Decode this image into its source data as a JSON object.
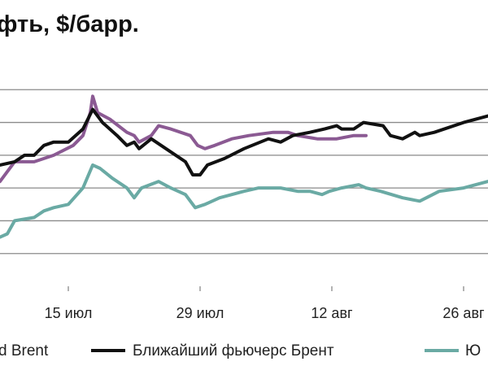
{
  "chart_data": {
    "type": "line",
    "title": "фть, $/барр.",
    "xlabel": "",
    "ylabel": "",
    "x_tick_labels": [
      "15 июл",
      "29 июл",
      "12 авг",
      "26 авг"
    ],
    "legend_position": "bottom",
    "grid": true,
    "series": [
      {
        "name": "d Brent",
        "color": "#8b5a93",
        "values": [
          [
            0,
            82
          ],
          [
            6,
            88
          ],
          [
            14,
            88
          ],
          [
            22,
            90
          ],
          [
            30,
            93
          ],
          [
            34,
            96
          ],
          [
            37,
            103
          ],
          [
            38,
            108
          ],
          [
            40,
            103
          ],
          [
            45,
            101
          ],
          [
            52,
            97
          ],
          [
            55,
            96
          ],
          [
            57,
            94
          ],
          [
            62,
            96
          ],
          [
            65,
            99
          ],
          [
            70,
            98
          ],
          [
            78,
            96
          ],
          [
            81,
            93
          ],
          [
            84,
            92
          ],
          [
            88,
            93
          ],
          [
            95,
            95
          ],
          [
            102,
            96
          ],
          [
            112,
            97
          ],
          [
            118,
            97
          ],
          [
            122,
            96
          ],
          [
            130,
            95
          ],
          [
            138,
            95
          ],
          [
            145,
            96
          ],
          [
            150,
            96
          ]
        ]
      },
      {
        "name": "Ближайший фьючерс Брент",
        "color": "#111111",
        "values": [
          [
            0,
            87
          ],
          [
            6,
            88
          ],
          [
            10,
            90
          ],
          [
            14,
            90
          ],
          [
            18,
            93
          ],
          [
            22,
            94
          ],
          [
            28,
            94
          ],
          [
            34,
            98
          ],
          [
            38,
            104
          ],
          [
            42,
            100
          ],
          [
            48,
            96
          ],
          [
            52,
            93
          ],
          [
            55,
            94
          ],
          [
            57,
            92
          ],
          [
            62,
            95
          ],
          [
            70,
            91
          ],
          [
            76,
            88
          ],
          [
            79,
            84
          ],
          [
            82,
            84
          ],
          [
            85,
            87
          ],
          [
            92,
            89
          ],
          [
            100,
            92
          ],
          [
            110,
            95
          ],
          [
            115,
            94
          ],
          [
            120,
            96
          ],
          [
            127,
            97
          ],
          [
            133,
            98
          ],
          [
            138,
            99
          ],
          [
            140,
            98
          ],
          [
            145,
            98
          ],
          [
            149,
            100
          ],
          [
            157,
            99
          ],
          [
            160,
            96
          ],
          [
            165,
            95
          ],
          [
            170,
            97
          ],
          [
            172,
            96
          ],
          [
            178,
            97
          ],
          [
            190,
            100
          ],
          [
            200,
            102
          ]
        ]
      },
      {
        "name": "Ю",
        "color": "#6aaaa4",
        "values": [
          [
            0,
            65
          ],
          [
            3,
            66
          ],
          [
            6,
            70
          ],
          [
            14,
            71
          ],
          [
            18,
            73
          ],
          [
            22,
            74
          ],
          [
            28,
            75
          ],
          [
            34,
            80
          ],
          [
            38,
            87
          ],
          [
            41,
            86
          ],
          [
            46,
            83
          ],
          [
            52,
            80
          ],
          [
            55,
            77
          ],
          [
            58,
            80
          ],
          [
            65,
            82
          ],
          [
            70,
            80
          ],
          [
            76,
            78
          ],
          [
            80,
            74
          ],
          [
            84,
            75
          ],
          [
            90,
            77
          ],
          [
            100,
            79
          ],
          [
            106,
            80
          ],
          [
            115,
            80
          ],
          [
            122,
            79
          ],
          [
            127,
            79
          ],
          [
            132,
            78
          ],
          [
            135,
            79
          ],
          [
            140,
            80
          ],
          [
            147,
            81
          ],
          [
            150,
            80
          ],
          [
            156,
            79
          ],
          [
            165,
            77
          ],
          [
            172,
            76
          ],
          [
            180,
            79
          ],
          [
            190,
            80
          ],
          [
            200,
            82
          ]
        ]
      }
    ],
    "x_tick_values": [
      28,
      82,
      136,
      190
    ],
    "xlim": [
      0,
      200
    ],
    "ylim": [
      50,
      120
    ],
    "y_gridlines": [
      60,
      70,
      80,
      90,
      100,
      110
    ]
  }
}
